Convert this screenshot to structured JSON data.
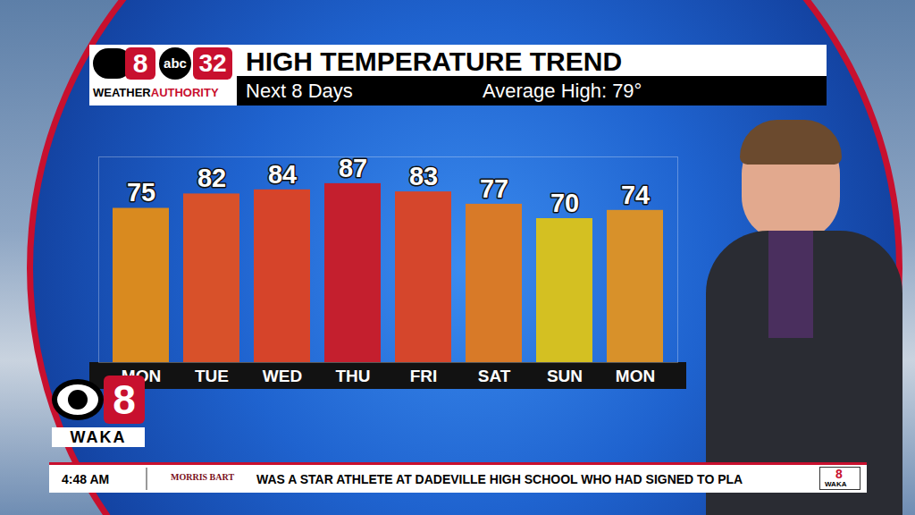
{
  "chart_data": {
    "type": "bar",
    "title": "HIGH TEMPERATURE TREND",
    "subtitle": "Next 8 Days",
    "annotations": [
      "Average High: 79°"
    ],
    "categories": [
      "MON",
      "TUE",
      "WED",
      "THU",
      "FRI",
      "SAT",
      "SUN",
      "MON"
    ],
    "values": [
      75,
      82,
      84,
      87,
      83,
      77,
      70,
      74
    ],
    "colors": [
      "#d98a1f",
      "#d8512a",
      "#d6442a",
      "#c41f2e",
      "#d5462c",
      "#d87a28",
      "#d4c022",
      "#d8912a"
    ],
    "ylim": [
      0,
      100
    ],
    "data_labels": true,
    "tick_labels": "x"
  },
  "branding": {
    "header_logo": [
      "8",
      "abc",
      "32"
    ],
    "header_logo_line": [
      "WEATHER",
      "AUTHORITY"
    ],
    "station_logo": [
      "8",
      "WAKA"
    ]
  },
  "ticker": {
    "time": "4:48 AM",
    "sponsor": "MORRIS BART",
    "headline": "WAS A STAR ATHLETE AT DADEVILLE HIGH SCHOOL WHO HAD SIGNED TO PLA",
    "logo": [
      "8",
      "WAKA"
    ]
  }
}
